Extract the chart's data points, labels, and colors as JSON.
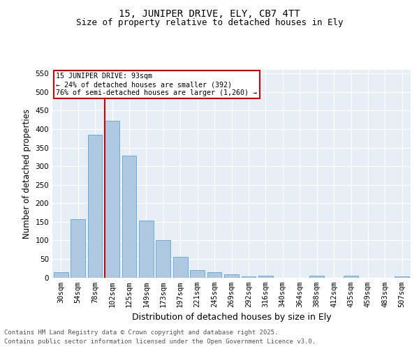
{
  "title": "15, JUNIPER DRIVE, ELY, CB7 4TT",
  "subtitle": "Size of property relative to detached houses in Ely",
  "xlabel": "Distribution of detached houses by size in Ely",
  "ylabel": "Number of detached properties",
  "categories": [
    "30sqm",
    "54sqm",
    "78sqm",
    "102sqm",
    "125sqm",
    "149sqm",
    "173sqm",
    "197sqm",
    "221sqm",
    "245sqm",
    "269sqm",
    "292sqm",
    "316sqm",
    "340sqm",
    "364sqm",
    "388sqm",
    "412sqm",
    "435sqm",
    "459sqm",
    "483sqm",
    "507sqm"
  ],
  "values": [
    15,
    157,
    385,
    422,
    328,
    153,
    101,
    55,
    20,
    15,
    9,
    3,
    4,
    0,
    0,
    4,
    0,
    4,
    0,
    0,
    2
  ],
  "bar_color": "#adc8e0",
  "bar_edge_color": "#6aaed6",
  "vline_color": "#cc0000",
  "annotation_box_color": "#cc0000",
  "annotation_text": "15 JUNIPER DRIVE: 93sqm\n← 24% of detached houses are smaller (392)\n76% of semi-detached houses are larger (1,260) →",
  "ylim": [
    0,
    560
  ],
  "yticks": [
    0,
    50,
    100,
    150,
    200,
    250,
    300,
    350,
    400,
    450,
    500,
    550
  ],
  "bg_color": "#e8eef6",
  "grid_color": "#ffffff",
  "footer_line1": "Contains HM Land Registry data © Crown copyright and database right 2025.",
  "footer_line2": "Contains public sector information licensed under the Open Government Licence v3.0.",
  "title_fontsize": 10,
  "subtitle_fontsize": 9,
  "axis_label_fontsize": 8.5,
  "tick_fontsize": 7.5,
  "footer_fontsize": 6.5
}
